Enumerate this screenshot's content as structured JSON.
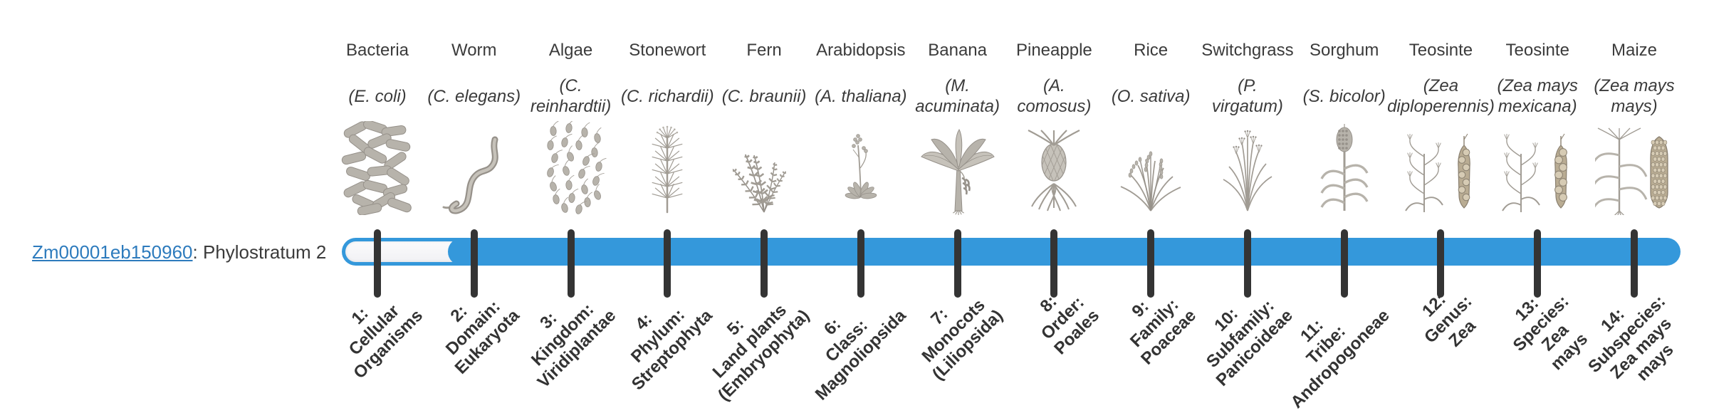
{
  "gene": {
    "id": "Zm00001eb150960",
    "annotation": ": Phylostratum 2",
    "phylostratum": 2
  },
  "colors": {
    "bar_blue": "#3498db",
    "bar_unfilled": "#f2f2f4",
    "tick": "#343434",
    "link_blue": "#2d7bbd",
    "text_dark": "#3b3b3b",
    "bold_label": "#333333",
    "icon_gray": "#b7b3ab"
  },
  "chart_data": {
    "type": "timeline",
    "title": "",
    "track_label": "Zm00001eb150960: Phylostratum 2",
    "gene_phylostratum": 2,
    "n_strata": 14,
    "filled_range": [
      2,
      14
    ],
    "legend_position": "none",
    "strata": [
      {
        "number": 1,
        "organism": "Bacteria",
        "species": "E. coli",
        "species_lines": [
          "(E. coli)"
        ],
        "stratum_label": "1: Cellular Organisms",
        "stratum_lines": [
          "1:",
          "Cellular",
          "Organisms"
        ],
        "icon": "bacteria"
      },
      {
        "number": 2,
        "organism": "Worm",
        "species": "C. elegans",
        "species_lines": [
          "(C. elegans)"
        ],
        "stratum_label": "2: Domain: Eukaryota",
        "stratum_lines": [
          "2:",
          "Domain:",
          "Eukaryota"
        ],
        "icon": "worm"
      },
      {
        "number": 3,
        "organism": "Algae",
        "species": "C. reinhardtii",
        "species_lines": [
          "(C.",
          "reinhardtii)"
        ],
        "stratum_label": "3: Kingdom: Viridiplantae",
        "stratum_lines": [
          "3:",
          "Kingdom:",
          "Viridiplantae"
        ],
        "icon": "algae"
      },
      {
        "number": 4,
        "organism": "Stonewort",
        "species": "C. richardii",
        "species_lines": [
          "(C. richardii)"
        ],
        "stratum_label": "4: Phylum: Streptophyta",
        "stratum_lines": [
          "4:",
          "Phylum:",
          "Streptophyta"
        ],
        "icon": "stonewort"
      },
      {
        "number": 5,
        "organism": "Fern",
        "species": "C. braunii",
        "species_lines": [
          "(C. braunii)"
        ],
        "stratum_label": "5: Land plants (Embryophyta)",
        "stratum_lines": [
          "5:",
          "Land plants",
          "(Embryophyta)"
        ],
        "icon": "fern"
      },
      {
        "number": 6,
        "organism": "Arabidopsis",
        "species": "A. thaliana",
        "species_lines": [
          "(A. thaliana)"
        ],
        "stratum_label": "6: Class: Magnoliopsida",
        "stratum_lines": [
          "6:",
          "Class:",
          "Magnoliopsida"
        ],
        "icon": "arabidopsis"
      },
      {
        "number": 7,
        "organism": "Banana",
        "species": "M. acuminata",
        "species_lines": [
          "(M.",
          "acuminata)"
        ],
        "stratum_label": "7: Monocots (Liliopsida)",
        "stratum_lines": [
          "7:",
          "Monocots",
          "(Liliopsida)"
        ],
        "icon": "banana"
      },
      {
        "number": 8,
        "organism": "Pineapple",
        "species": "A. comosus",
        "species_lines": [
          "(A.",
          "comosus)"
        ],
        "stratum_label": "8: Order: Poales",
        "stratum_lines": [
          "8:",
          "Order:",
          "Poales"
        ],
        "icon": "pineapple"
      },
      {
        "number": 9,
        "organism": "Rice",
        "species": "O. sativa",
        "species_lines": [
          "(O. sativa)"
        ],
        "stratum_label": "9: Family: Poaceae",
        "stratum_lines": [
          "9:",
          "Family:",
          "Poaceae"
        ],
        "icon": "rice"
      },
      {
        "number": 10,
        "organism": "Switchgrass",
        "species": "P. virgatum",
        "species_lines": [
          "(P.",
          "virgatum)"
        ],
        "stratum_label": "10: Subfamily: Panicoideae",
        "stratum_lines": [
          "10:",
          "Subfamily:",
          "Panicoideae"
        ],
        "icon": "switchgrass"
      },
      {
        "number": 11,
        "organism": "Sorghum",
        "species": "S. bicolor",
        "species_lines": [
          "(S. bicolor)"
        ],
        "stratum_label": "11: Tribe: Andropogoneae",
        "stratum_lines": [
          "11:",
          "Tribe:",
          "Andropogoneae"
        ],
        "icon": "sorghum"
      },
      {
        "number": 12,
        "organism": "Teosinte",
        "species": "Zea diploperennis",
        "species_lines": [
          "(Zea",
          "diploperennis)"
        ],
        "stratum_label": "12: Genus: Zea",
        "stratum_lines": [
          "12:",
          "Genus:",
          "Zea"
        ],
        "icon": "teosinte"
      },
      {
        "number": 13,
        "organism": "Teosinte",
        "species": "Zea mays mexicana",
        "species_lines": [
          "(Zea mays",
          "mexicana)"
        ],
        "stratum_label": "13: Species: Zea mays",
        "stratum_lines": [
          "13:",
          "Species:",
          "Zea",
          "mays"
        ],
        "icon": "teosinte-ear"
      },
      {
        "number": 14,
        "organism": "Maize",
        "species": "Zea mays mays",
        "species_lines": [
          "(Zea mays",
          "mays)"
        ],
        "stratum_label": "14: Subspecies: Zea mays mays",
        "stratum_lines": [
          "14:",
          "Subspecies:",
          "Zea mays",
          "mays"
        ],
        "icon": "maize"
      }
    ]
  }
}
